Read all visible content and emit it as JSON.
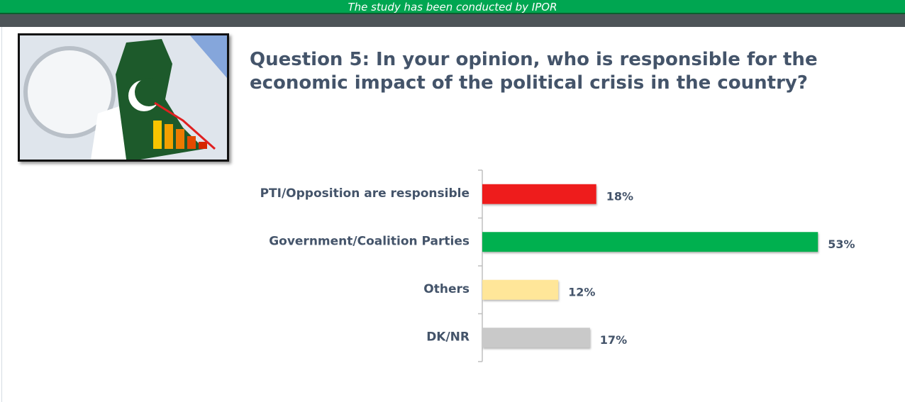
{
  "header": {
    "text": "The study has been conducted by IPOR"
  },
  "chart_data": {
    "type": "bar",
    "orientation": "horizontal",
    "title": "Question 5: In your opinion, who is responsible for the economic impact of the political crisis in the country?",
    "categories": [
      "PTI/Opposition are responsible",
      "Government/Coalition Parties",
      "Others",
      "DK/NR"
    ],
    "values": [
      18,
      53,
      12,
      17
    ],
    "value_labels": [
      "18%",
      "53%",
      "12%",
      "17%"
    ],
    "colors": [
      "#ee1c1c",
      "#00b050",
      "#ffe699",
      "#c9c9c9"
    ]
  }
}
